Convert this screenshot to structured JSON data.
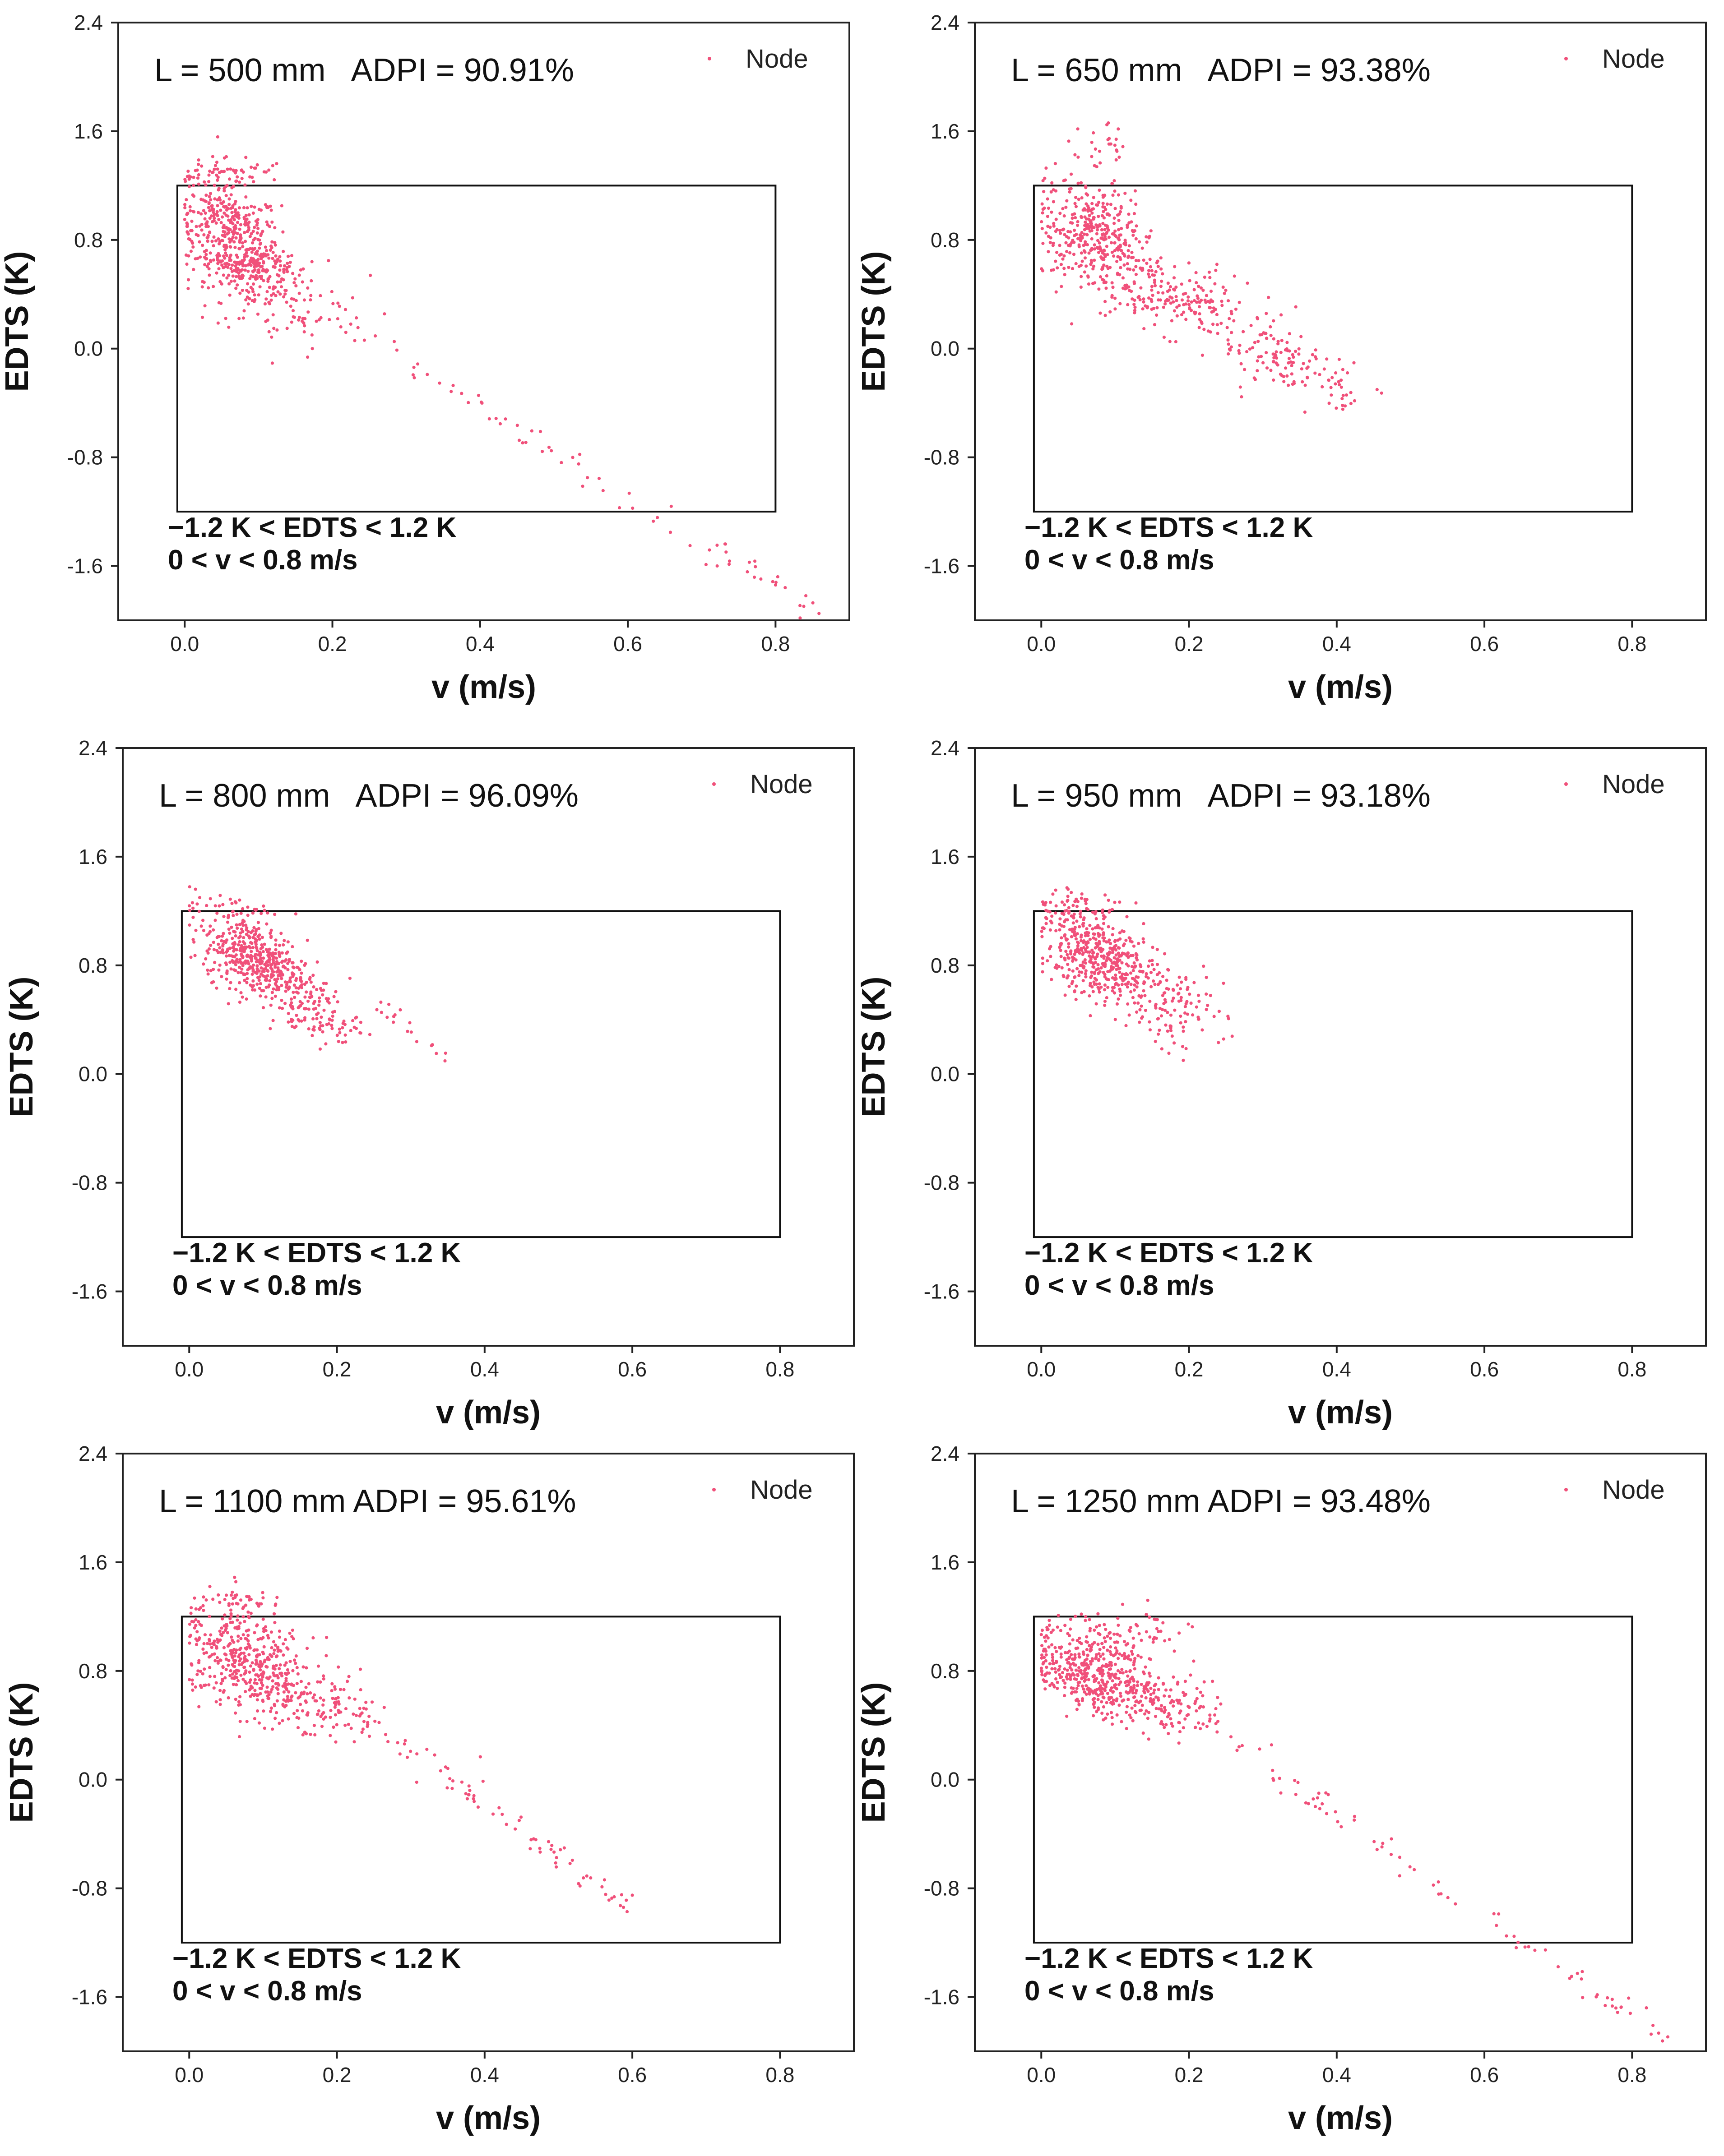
{
  "colors": {
    "marker": "#f0507a",
    "axis": "#222222",
    "box": "#111111"
  },
  "chart_data": [
    {
      "type": "scatter",
      "title": "L = 500 mm   ADPI = 90.91%",
      "xlabel": "v (m/s)",
      "ylabel": "EDTS (K)",
      "xlim": [
        -0.09,
        0.9
      ],
      "ylim": [
        -2.0,
        2.4
      ],
      "xticks": [
        "0.0",
        "0.2",
        "0.4",
        "0.6",
        "0.8"
      ],
      "xtick_values": [
        0,
        0.2,
        0.4,
        0.6,
        0.8
      ],
      "yticks": [
        "2.4",
        "1.6",
        "0.8",
        "0.0",
        "-0.8",
        "-1.6"
      ],
      "ytick_values": [
        2.4,
        1.6,
        0.8,
        0,
        -0.8,
        -1.6
      ],
      "legend": "Node",
      "criteria": [
        "−1.2 K < EDTS < 1.2 K",
        "0 < v < 0.8 m/s"
      ],
      "comfort_box": {
        "v": [
          -0.01,
          0.8
        ],
        "edts": [
          -1.2,
          1.2
        ]
      },
      "clusters": [
        {
          "cx": 0.06,
          "cy": 0.85,
          "sx": 0.035,
          "sy": 0.22,
          "n": 420,
          "rho": -0.35
        },
        {
          "cx": 0.1,
          "cy": 0.6,
          "sx": 0.03,
          "sy": 0.06,
          "n": 120,
          "rho": 0
        },
        {
          "cx": 0.13,
          "cy": 0.35,
          "sx": 0.06,
          "sy": 0.18,
          "n": 120,
          "rho": -0.4
        },
        {
          "cx": 0.06,
          "cy": 1.3,
          "sx": 0.04,
          "sy": 0.06,
          "n": 40,
          "rho": 0
        }
      ],
      "tail": {
        "from": [
          0.25,
          0.05
        ],
        "to": [
          0.86,
          -1.95
        ],
        "n": 70
      }
    },
    {
      "type": "scatter",
      "title": "L = 650 mm   ADPI = 93.38%",
      "xlabel": "v (m/s)",
      "ylabel": "EDTS (K)",
      "xlim": [
        -0.09,
        0.9
      ],
      "ylim": [
        -2.0,
        2.4
      ],
      "xticks": [
        "0.0",
        "0.2",
        "0.4",
        "0.6",
        "0.8"
      ],
      "xtick_values": [
        0,
        0.2,
        0.4,
        0.6,
        0.8
      ],
      "yticks": [
        "2.4",
        "1.6",
        "0.8",
        "0.0",
        "-0.8",
        "-1.6"
      ],
      "ytick_values": [
        2.4,
        1.6,
        0.8,
        0,
        -0.8,
        -1.6
      ],
      "legend": "Node",
      "criteria": [
        "−1.2 K < EDTS < 1.2 K",
        "0 < v < 0.8 m/s"
      ],
      "comfort_box": {
        "v": [
          -0.01,
          0.8
        ],
        "edts": [
          -1.2,
          1.2
        ]
      },
      "clusters": [
        {
          "cx": 0.07,
          "cy": 0.85,
          "sx": 0.035,
          "sy": 0.2,
          "n": 380,
          "rho": -0.3
        },
        {
          "cx": 0.17,
          "cy": 0.4,
          "sx": 0.06,
          "sy": 0.15,
          "n": 200,
          "rho": -0.5
        },
        {
          "cx": 0.33,
          "cy": -0.1,
          "sx": 0.05,
          "sy": 0.15,
          "n": 110,
          "rho": -0.6
        },
        {
          "cx": 0.08,
          "cy": 1.45,
          "sx": 0.02,
          "sy": 0.1,
          "n": 25,
          "rho": 0
        }
      ],
      "tail": {
        "from": [
          0.3,
          0.1
        ],
        "to": [
          0.42,
          -0.4
        ],
        "n": 30
      }
    },
    {
      "type": "scatter",
      "title": "L = 800 mm   ADPI = 96.09%",
      "xlabel": "v (m/s)",
      "ylabel": "EDTS (K)",
      "xlim": [
        -0.09,
        0.9
      ],
      "ylim": [
        -2.0,
        2.4
      ],
      "xticks": [
        "0.0",
        "0.2",
        "0.4",
        "0.6",
        "0.8"
      ],
      "xtick_values": [
        0,
        0.2,
        0.4,
        0.6,
        0.8
      ],
      "yticks": [
        "2.4",
        "1.6",
        "0.8",
        "0.0",
        "-0.8",
        "-1.6"
      ],
      "ytick_values": [
        2.4,
        1.6,
        0.8,
        0,
        -0.8,
        -1.6
      ],
      "legend": "Node",
      "criteria": [
        "−1.2 K < EDTS < 1.2 K",
        "0 < v < 0.8 m/s"
      ],
      "comfort_box": {
        "v": [
          -0.01,
          0.8
        ],
        "edts": [
          -1.2,
          1.2
        ]
      },
      "clusters": [
        {
          "cx": 0.09,
          "cy": 0.85,
          "sx": 0.035,
          "sy": 0.15,
          "n": 450,
          "rho": -0.45
        },
        {
          "cx": 0.17,
          "cy": 0.45,
          "sx": 0.03,
          "sy": 0.12,
          "n": 120,
          "rho": -0.3
        },
        {
          "cx": 0.06,
          "cy": 1.2,
          "sx": 0.03,
          "sy": 0.05,
          "n": 40,
          "rho": 0
        }
      ],
      "tail": {
        "from": [
          0.25,
          0.55
        ],
        "to": [
          0.35,
          0.08
        ],
        "n": 18
      }
    },
    {
      "type": "scatter",
      "title": "L = 950 mm   ADPI = 93.18%",
      "xlabel": "v (m/s)",
      "ylabel": "EDTS (K)",
      "xlim": [
        -0.09,
        0.9
      ],
      "ylim": [
        -2.0,
        2.4
      ],
      "xticks": [
        "0.0",
        "0.2",
        "0.4",
        "0.6",
        "0.8"
      ],
      "xtick_values": [
        0,
        0.2,
        0.4,
        0.6,
        0.8
      ],
      "yticks": [
        "2.4",
        "1.6",
        "0.8",
        "0.0",
        "-0.8",
        "-1.6"
      ],
      "ytick_values": [
        2.4,
        1.6,
        0.8,
        0,
        -0.8,
        -1.6
      ],
      "legend": "Node",
      "criteria": [
        "−1.2 K < EDTS < 1.2 K",
        "0 < v < 0.8 m/s"
      ],
      "comfort_box": {
        "v": [
          -0.01,
          0.8
        ],
        "edts": [
          -1.2,
          1.2
        ]
      },
      "clusters": [
        {
          "cx": 0.08,
          "cy": 0.85,
          "sx": 0.04,
          "sy": 0.17,
          "n": 460,
          "rho": -0.45
        },
        {
          "cx": 0.17,
          "cy": 0.55,
          "sx": 0.04,
          "sy": 0.15,
          "n": 110,
          "rho": -0.4
        },
        {
          "cx": 0.05,
          "cy": 1.25,
          "sx": 0.03,
          "sy": 0.07,
          "n": 40,
          "rho": 0
        }
      ],
      "tail": {
        "from": [
          0.15,
          0.35
        ],
        "to": [
          0.2,
          0.22
        ],
        "n": 10
      }
    },
    {
      "type": "scatter",
      "title": "L = 1100 mm ADPI = 95.61%",
      "xlabel": "v (m/s)",
      "ylabel": "EDTS (K)",
      "xlim": [
        -0.09,
        0.9
      ],
      "ylim": [
        -2.0,
        2.4
      ],
      "xticks": [
        "0.0",
        "0.2",
        "0.4",
        "0.6",
        "0.8"
      ],
      "xtick_values": [
        0,
        0.2,
        0.4,
        0.6,
        0.8
      ],
      "yticks": [
        "2.4",
        "1.6",
        "0.8",
        "0.0",
        "-0.8",
        "-1.6"
      ],
      "ytick_values": [
        2.4,
        1.6,
        0.8,
        0,
        -0.8,
        -1.6
      ],
      "legend": "Node",
      "criteria": [
        "−1.2 K < EDTS < 1.2 K",
        "0 < v < 0.8 m/s"
      ],
      "comfort_box": {
        "v": [
          -0.01,
          0.8
        ],
        "edts": [
          -1.2,
          1.2
        ]
      },
      "clusters": [
        {
          "cx": 0.08,
          "cy": 0.85,
          "sx": 0.045,
          "sy": 0.2,
          "n": 430,
          "rho": -0.4
        },
        {
          "cx": 0.18,
          "cy": 0.55,
          "sx": 0.05,
          "sy": 0.15,
          "n": 130,
          "rho": -0.4
        },
        {
          "cx": 0.06,
          "cy": 1.3,
          "sx": 0.03,
          "sy": 0.06,
          "n": 40,
          "rho": 0
        }
      ],
      "tail": {
        "from": [
          0.25,
          0.4
        ],
        "to": [
          0.6,
          -0.97
        ],
        "n": 70
      }
    },
    {
      "type": "scatter",
      "title": "L = 1250 mm ADPI = 93.48%",
      "xlabel": "v (m/s)",
      "ylabel": "EDTS (K)",
      "xlim": [
        -0.09,
        0.9
      ],
      "ylim": [
        -2.0,
        2.4
      ],
      "xticks": [
        "0.0",
        "0.2",
        "0.4",
        "0.6",
        "0.8"
      ],
      "xtick_values": [
        0,
        0.2,
        0.4,
        0.6,
        0.8
      ],
      "yticks": [
        "2.4",
        "1.6",
        "0.8",
        "0.0",
        "-0.8",
        "-1.6"
      ],
      "ytick_values": [
        2.4,
        1.6,
        0.8,
        0,
        -0.8,
        -1.6
      ],
      "legend": "Node",
      "criteria": [
        "−1.2 K < EDTS < 1.2 K",
        "0 < v < 0.8 m/s"
      ],
      "comfort_box": {
        "v": [
          -0.01,
          0.8
        ],
        "edts": [
          -1.2,
          1.2
        ]
      },
      "clusters": [
        {
          "cx": 0.07,
          "cy": 0.8,
          "sx": 0.04,
          "sy": 0.16,
          "n": 420,
          "rho": -0.35
        },
        {
          "cx": 0.16,
          "cy": 0.55,
          "sx": 0.05,
          "sy": 0.12,
          "n": 150,
          "rho": -0.4
        },
        {
          "cx": 0.12,
          "cy": 1.05,
          "sx": 0.04,
          "sy": 0.12,
          "n": 60,
          "rho": -0.2
        }
      ],
      "tail": {
        "from": [
          0.25,
          0.3
        ],
        "to": [
          0.85,
          -1.95
        ],
        "n": 80
      }
    }
  ]
}
